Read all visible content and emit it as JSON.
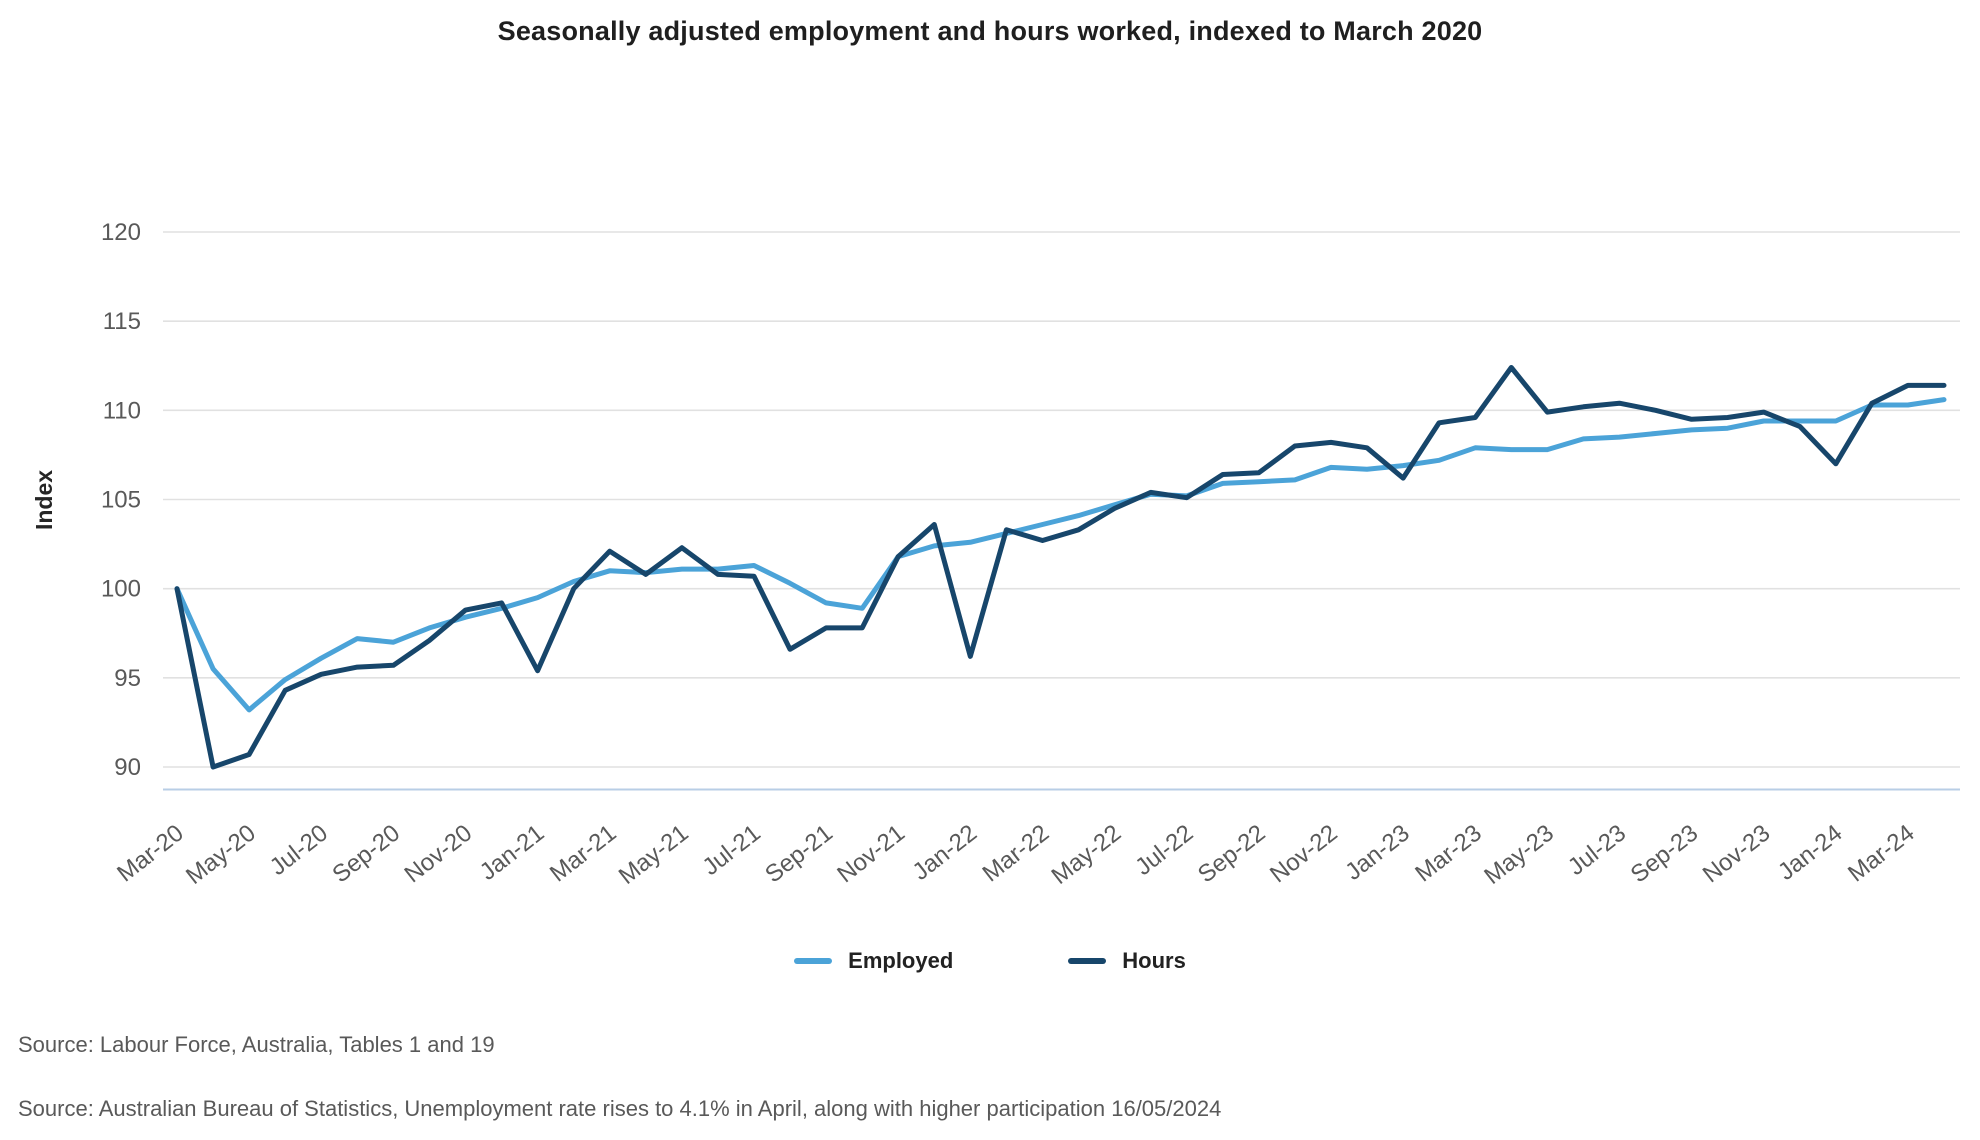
{
  "title": "Seasonally adjusted employment and hours worked, indexed to March 2020",
  "sources": {
    "line1": "Source: Labour Force, Australia, Tables 1 and 19",
    "line2": "Source: Australian Bureau of Statistics, Unemployment rate rises to 4.1% in April, along with higher participation 16/05/2024"
  },
  "colors": {
    "employed": "#4BA3D8",
    "hours": "#17466B",
    "gridline": "#E1E1E1",
    "axis_baseline": "#B8CEE6",
    "tick_text": "#595959"
  },
  "chart_data": {
    "type": "line",
    "title": "Seasonally adjusted employment and hours worked, indexed to March 2020",
    "xlabel": "",
    "ylabel": "Index",
    "ylim": [
      90,
      120
    ],
    "y_ticks": [
      90,
      95,
      100,
      105,
      110,
      115,
      120
    ],
    "grid": true,
    "legend_position": "bottom",
    "x_tick_every": 2,
    "categories": [
      "Mar-20",
      "Apr-20",
      "May-20",
      "Jun-20",
      "Jul-20",
      "Aug-20",
      "Sep-20",
      "Oct-20",
      "Nov-20",
      "Dec-20",
      "Jan-21",
      "Feb-21",
      "Mar-21",
      "Apr-21",
      "May-21",
      "Jun-21",
      "Jul-21",
      "Aug-21",
      "Sep-21",
      "Oct-21",
      "Nov-21",
      "Dec-21",
      "Jan-22",
      "Feb-22",
      "Mar-22",
      "Apr-22",
      "May-22",
      "Jun-22",
      "Jul-22",
      "Aug-22",
      "Sep-22",
      "Oct-22",
      "Nov-22",
      "Dec-22",
      "Jan-23",
      "Feb-23",
      "Mar-23",
      "Apr-23",
      "May-23",
      "Jun-23",
      "Jul-23",
      "Aug-23",
      "Sep-23",
      "Oct-23",
      "Nov-23",
      "Dec-23",
      "Jan-24",
      "Feb-24",
      "Mar-24",
      "Apr-24"
    ],
    "series": [
      {
        "name": "Employed",
        "color": "#4BA3D8",
        "values": [
          100,
          95.5,
          93.2,
          94.9,
          96.1,
          97.2,
          97.0,
          97.8,
          98.4,
          98.9,
          99.5,
          100.4,
          101.0,
          100.9,
          101.1,
          101.1,
          101.3,
          100.3,
          99.2,
          98.9,
          101.8,
          102.4,
          102.6,
          103.1,
          103.6,
          104.1,
          104.7,
          105.3,
          105.2,
          105.9,
          106.0,
          106.1,
          106.8,
          106.7,
          106.9,
          107.2,
          107.9,
          107.8,
          107.8,
          108.4,
          108.5,
          108.7,
          108.9,
          109.0,
          109.4,
          109.4,
          109.4,
          110.3,
          110.3,
          110.6
        ]
      },
      {
        "name": "Hours",
        "color": "#17466B",
        "values": [
          100,
          90.0,
          90.7,
          94.3,
          95.2,
          95.6,
          95.7,
          97.1,
          98.8,
          99.2,
          95.4,
          100.0,
          102.1,
          100.8,
          102.3,
          100.8,
          100.7,
          96.6,
          97.8,
          97.8,
          101.8,
          103.6,
          96.2,
          103.3,
          102.7,
          103.3,
          104.5,
          105.4,
          105.1,
          106.4,
          106.5,
          108.0,
          108.2,
          107.9,
          106.2,
          109.3,
          109.6,
          112.4,
          109.9,
          110.2,
          110.4,
          110.0,
          109.5,
          109.6,
          109.9,
          109.1,
          107.0,
          110.4,
          111.4,
          111.4
        ]
      }
    ]
  }
}
